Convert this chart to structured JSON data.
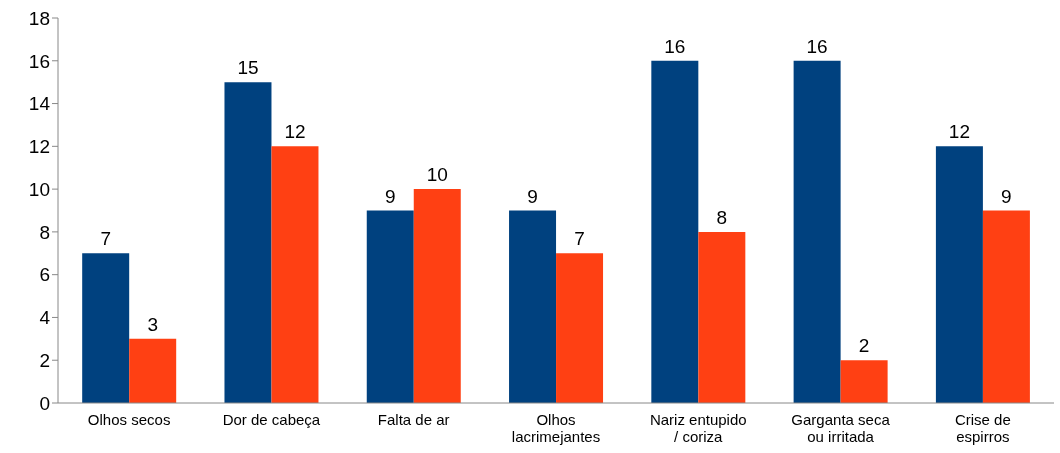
{
  "chart_data": {
    "type": "bar",
    "categories": [
      "Olhos secos",
      "Dor de cabeça",
      "Falta de ar",
      "Olhos lacrimejantes",
      "Nariz entupido / coriza",
      "Garganta seca ou irritada",
      "Crise de espirros"
    ],
    "series": [
      {
        "color": "#00417f",
        "values": [
          7,
          15,
          9,
          9,
          16,
          16,
          12
        ]
      },
      {
        "color": "#ff4013",
        "values": [
          3,
          12,
          10,
          7,
          8,
          2,
          9
        ]
      }
    ],
    "ylim": [
      0,
      18
    ],
    "yticks": [
      0,
      2,
      4,
      6,
      8,
      10,
      12,
      14,
      16,
      18
    ],
    "grid": false,
    "legend": false,
    "data_labels": true
  }
}
